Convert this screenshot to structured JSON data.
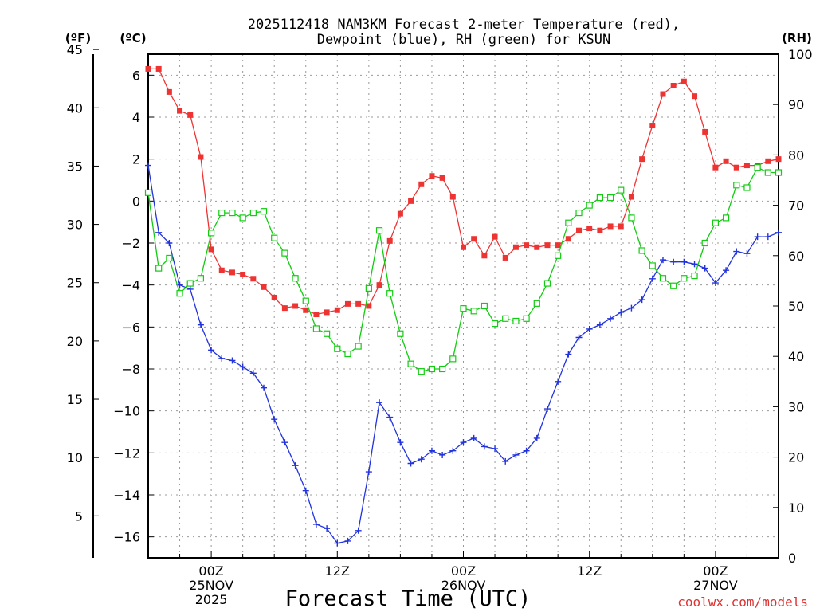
{
  "colors": {
    "temperature": "#ee3333",
    "dewpoint": "#2233dd",
    "rh": "#11cc11",
    "credit": "#dd3333",
    "axis": "#000000",
    "grid": "#999999"
  },
  "chart_data": {
    "type": "line",
    "title_line1": "2025112418 NAM3KM Forecast 2-meter Temperature (red),",
    "title_line2": "Dewpoint (blue), RH (green) for KSUN",
    "xlabel": "Forecast Time (UTC)",
    "credit": "coolwx.com/models",
    "axis_labels": {
      "fahrenheit": "(ºF)",
      "celsius": "(ºC)",
      "rh": "(RH)"
    },
    "x_range_hours": [
      0,
      60
    ],
    "x_ticks": [
      {
        "hour": 6,
        "label": "00Z",
        "date": "25NOV",
        "year": "2025"
      },
      {
        "hour": 18,
        "label": "12Z",
        "date": "",
        "year": ""
      },
      {
        "hour": 30,
        "label": "00Z",
        "date": "26NOV",
        "year": ""
      },
      {
        "hour": 42,
        "label": "12Z",
        "date": "",
        "year": ""
      },
      {
        "hour": 54,
        "label": "00Z",
        "date": "27NOV",
        "year": ""
      }
    ],
    "celsius_axis": {
      "ylim": [
        -17.0,
        7.0
      ],
      "ticks": [
        6,
        4,
        2,
        0,
        -2,
        -4,
        -6,
        -8,
        -10,
        -12,
        -14,
        -16
      ],
      "tick_labels": [
        "6",
        "4",
        "2",
        "0",
        "−2",
        "−4",
        "−6",
        "−8",
        "−10",
        "−12",
        "−14",
        "−16"
      ]
    },
    "fahrenheit_axis": {
      "ticks": [
        45,
        40,
        35,
        30,
        25,
        20,
        15,
        10,
        5
      ],
      "tick_labels": [
        "45",
        "40",
        "35",
        "30",
        "25",
        "20",
        "15",
        "10",
        "5"
      ]
    },
    "rh_axis": {
      "ylim": [
        0,
        100
      ],
      "ticks": [
        100,
        90,
        80,
        70,
        60,
        50,
        40,
        30,
        20,
        10,
        0
      ],
      "tick_labels": [
        "100",
        "90",
        "80",
        "70",
        "60",
        "50",
        "40",
        "30",
        "20",
        "10",
        "0"
      ]
    },
    "series": [
      {
        "name": "Temperature",
        "unit": "C",
        "marker": "filled-square",
        "hours": [
          0,
          1,
          2,
          3,
          4,
          5,
          6,
          7,
          8,
          9,
          10,
          11,
          12,
          13,
          14,
          15,
          16,
          17,
          18,
          19,
          20,
          21,
          22,
          23,
          24,
          25,
          26,
          27,
          28,
          29,
          30,
          31,
          32,
          33,
          34,
          35,
          36,
          37,
          38,
          39,
          40,
          41,
          42,
          43,
          44,
          45,
          46,
          47,
          48,
          49,
          50,
          51,
          52,
          53,
          54,
          55,
          56,
          57,
          58,
          59,
          60
        ],
        "values": [
          6.3,
          6.3,
          5.2,
          4.3,
          4.1,
          2.1,
          -2.3,
          -3.3,
          -3.4,
          -3.5,
          -3.7,
          -4.1,
          -4.6,
          -5.1,
          -5.0,
          -5.2,
          -5.4,
          -5.3,
          -5.2,
          -4.9,
          -4.9,
          -5.0,
          -4.0,
          -1.9,
          -0.6,
          0.0,
          0.8,
          1.2,
          1.1,
          0.2,
          -2.2,
          -1.8,
          -2.6,
          -1.7,
          -2.7,
          -2.2,
          -2.1,
          -2.2,
          -2.1,
          -2.1,
          -1.8,
          -1.4,
          -1.3,
          -1.4,
          -1.2,
          -1.2,
          0.2,
          2.0,
          3.6,
          5.1,
          5.5,
          5.7,
          5.0,
          3.3,
          1.6,
          1.9,
          1.6,
          1.7,
          1.7,
          1.9,
          2.0
        ]
      },
      {
        "name": "Dewpoint",
        "unit": "C",
        "marker": "plus",
        "hours": [
          0,
          1,
          2,
          3,
          4,
          5,
          6,
          7,
          8,
          9,
          10,
          11,
          12,
          13,
          14,
          15,
          16,
          17,
          18,
          19,
          20,
          21,
          22,
          23,
          24,
          25,
          26,
          27,
          28,
          29,
          30,
          31,
          32,
          33,
          34,
          35,
          36,
          37,
          38,
          39,
          40,
          41,
          42,
          43,
          44,
          45,
          46,
          47,
          48,
          49,
          50,
          51,
          52,
          53,
          54,
          55,
          56,
          57,
          58,
          59,
          60
        ],
        "values": [
          1.7,
          -1.5,
          -2.0,
          -4.0,
          -4.2,
          -5.9,
          -7.1,
          -7.5,
          -7.6,
          -7.9,
          -8.2,
          -8.9,
          -10.4,
          -11.5,
          -12.6,
          -13.8,
          -15.4,
          -15.6,
          -16.3,
          -16.2,
          -15.7,
          -12.9,
          -9.6,
          -10.3,
          -11.5,
          -12.5,
          -12.3,
          -11.9,
          -12.1,
          -11.9,
          -11.5,
          -11.3,
          -11.7,
          -11.8,
          -12.4,
          -12.1,
          -11.9,
          -11.3,
          -9.9,
          -8.6,
          -7.3,
          -6.5,
          -6.1,
          -5.9,
          -5.6,
          -5.3,
          -5.1,
          -4.7,
          -3.7,
          -2.8,
          -2.9,
          -2.9,
          -3.0,
          -3.2,
          -3.9,
          -3.3,
          -2.4,
          -2.5,
          -1.7,
          -1.7,
          -1.5
        ]
      },
      {
        "name": "RH",
        "unit": "%",
        "marker": "open-square",
        "hours": [
          0,
          1,
          2,
          3,
          4,
          5,
          6,
          7,
          8,
          9,
          10,
          11,
          12,
          13,
          14,
          15,
          16,
          17,
          18,
          19,
          20,
          21,
          22,
          23,
          24,
          25,
          26,
          27,
          28,
          29,
          30,
          31,
          32,
          33,
          34,
          35,
          36,
          37,
          38,
          39,
          40,
          41,
          42,
          43,
          44,
          45,
          46,
          47,
          48,
          49,
          50,
          51,
          52,
          53,
          54,
          55,
          56,
          57,
          58,
          59,
          60
        ],
        "values": [
          72.5,
          57.5,
          59.5,
          52.5,
          54.5,
          55.5,
          64.5,
          68.5,
          68.5,
          67.5,
          68.5,
          68.8,
          63.5,
          60.5,
          55.5,
          51.0,
          45.5,
          44.5,
          41.5,
          40.5,
          42.0,
          53.5,
          65.0,
          52.5,
          44.5,
          38.5,
          37.0,
          37.5,
          37.5,
          39.5,
          49.5,
          49.0,
          50.0,
          46.5,
          47.5,
          47.0,
          47.5,
          50.5,
          54.5,
          60.0,
          66.5,
          68.5,
          70.0,
          71.5,
          71.5,
          73.0,
          67.5,
          61.0,
          58.0,
          55.5,
          54.0,
          55.5,
          56.0,
          62.5,
          66.5,
          67.5,
          74.0,
          73.5,
          77.5,
          76.5,
          76.5
        ]
      }
    ]
  }
}
